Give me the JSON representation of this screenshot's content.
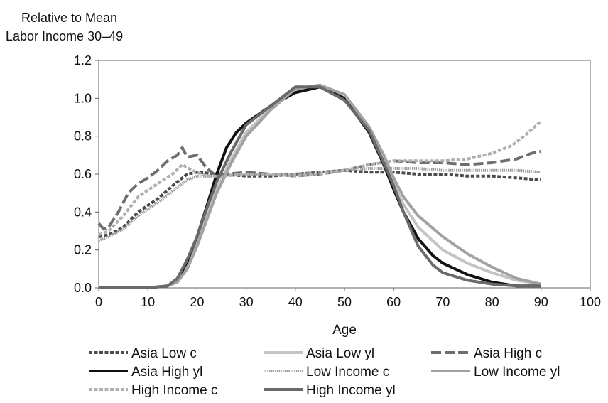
{
  "chart_data": {
    "type": "line",
    "ylabel_line1": "Relative to Mean",
    "ylabel_line2": "Labor Income 30–49",
    "xlabel": "Age",
    "xlim": [
      0,
      100
    ],
    "ylim": [
      0,
      1.2
    ],
    "xticks": [
      "0",
      "10",
      "20",
      "30",
      "40",
      "50",
      "60",
      "70",
      "80",
      "90",
      "100"
    ],
    "yticks": [
      "0.0",
      "0.2",
      "0.4",
      "0.6",
      "0.8",
      "1.0",
      "1.2"
    ],
    "legend_position": "bottom",
    "series": [
      {
        "name": "Asia Low c",
        "color": "#4a4a4a",
        "dash": "short",
        "x": [
          0,
          2,
          5,
          8,
          12,
          16,
          18,
          20,
          25,
          30,
          35,
          40,
          45,
          50,
          55,
          60,
          65,
          70,
          75,
          80,
          85,
          90
        ],
        "y": [
          0.27,
          0.28,
          0.32,
          0.4,
          0.47,
          0.56,
          0.6,
          0.61,
          0.6,
          0.59,
          0.59,
          0.6,
          0.61,
          0.62,
          0.61,
          0.61,
          0.6,
          0.6,
          0.59,
          0.59,
          0.58,
          0.57
        ]
      },
      {
        "name": "Asia Low yl",
        "color": "#c4c4c4",
        "dash": "solid",
        "x": [
          0,
          10,
          14,
          16,
          18,
          20,
          22,
          24,
          27,
          30,
          35,
          40,
          45,
          50,
          55,
          58,
          60,
          62,
          65,
          70,
          75,
          80,
          85,
          90
        ],
        "y": [
          0,
          0,
          0.01,
          0.04,
          0.12,
          0.24,
          0.38,
          0.52,
          0.68,
          0.82,
          0.95,
          1.04,
          1.06,
          1.0,
          0.83,
          0.66,
          0.55,
          0.44,
          0.32,
          0.2,
          0.13,
          0.08,
          0.04,
          0.02
        ]
      },
      {
        "name": "Asia High c",
        "color": "#6e6e6e",
        "dash": "long",
        "x": [
          0,
          1,
          2,
          4,
          6,
          8,
          10,
          12,
          14,
          16,
          17,
          18,
          20,
          22,
          24,
          26,
          30,
          35,
          40,
          45,
          50,
          55,
          60,
          65,
          70,
          75,
          80,
          85,
          88,
          90
        ],
        "y": [
          0.34,
          0.31,
          0.32,
          0.4,
          0.5,
          0.55,
          0.58,
          0.62,
          0.67,
          0.7,
          0.74,
          0.69,
          0.7,
          0.63,
          0.59,
          0.6,
          0.61,
          0.6,
          0.59,
          0.6,
          0.62,
          0.65,
          0.67,
          0.66,
          0.66,
          0.65,
          0.66,
          0.68,
          0.71,
          0.72
        ]
      },
      {
        "name": "Asia High yl",
        "color": "#111111",
        "dash": "solid",
        "x": [
          0,
          10,
          14,
          16,
          18,
          20,
          22,
          24,
          26,
          28,
          30,
          35,
          40,
          45,
          50,
          55,
          58,
          60,
          62,
          65,
          68,
          70,
          75,
          80,
          85,
          90
        ],
        "y": [
          0,
          0,
          0.01,
          0.04,
          0.14,
          0.27,
          0.43,
          0.6,
          0.74,
          0.82,
          0.87,
          0.96,
          1.03,
          1.06,
          1.0,
          0.82,
          0.65,
          0.52,
          0.4,
          0.26,
          0.17,
          0.13,
          0.07,
          0.03,
          0.01,
          0.01
        ]
      },
      {
        "name": "Low Income c",
        "color": "#9a9a9a",
        "dash": "dotted",
        "x": [
          0,
          2,
          5,
          8,
          12,
          16,
          18,
          20,
          25,
          30,
          35,
          40,
          45,
          50,
          55,
          60,
          65,
          70,
          75,
          80,
          85,
          90
        ],
        "y": [
          0.25,
          0.27,
          0.31,
          0.38,
          0.45,
          0.53,
          0.57,
          0.59,
          0.59,
          0.6,
          0.6,
          0.6,
          0.61,
          0.62,
          0.63,
          0.63,
          0.63,
          0.62,
          0.62,
          0.62,
          0.62,
          0.61
        ]
      },
      {
        "name": "Low Income yl",
        "color": "#a2a2a2",
        "dash": "solid",
        "x": [
          0,
          10,
          14,
          16,
          18,
          20,
          22,
          24,
          27,
          30,
          35,
          40,
          45,
          50,
          55,
          58,
          60,
          62,
          65,
          70,
          75,
          80,
          85,
          90
        ],
        "y": [
          0,
          0,
          0.01,
          0.03,
          0.1,
          0.22,
          0.36,
          0.5,
          0.66,
          0.8,
          0.94,
          1.05,
          1.07,
          1.02,
          0.85,
          0.7,
          0.58,
          0.48,
          0.38,
          0.27,
          0.18,
          0.11,
          0.05,
          0.02
        ]
      },
      {
        "name": "High Income c",
        "color": "#b0b0b0",
        "dash": "short",
        "x": [
          0,
          2,
          5,
          8,
          12,
          15,
          17,
          19,
          22,
          25,
          30,
          35,
          40,
          45,
          50,
          55,
          60,
          65,
          70,
          75,
          80,
          84,
          87,
          90
        ],
        "y": [
          0.28,
          0.3,
          0.38,
          0.48,
          0.55,
          0.6,
          0.65,
          0.62,
          0.59,
          0.59,
          0.6,
          0.6,
          0.59,
          0.6,
          0.62,
          0.65,
          0.67,
          0.67,
          0.67,
          0.68,
          0.71,
          0.75,
          0.81,
          0.88
        ]
      },
      {
        "name": "High Income yl",
        "color": "#6a6a6a",
        "dash": "solid",
        "x": [
          0,
          10,
          14,
          16,
          18,
          20,
          22,
          24,
          27,
          30,
          35,
          40,
          45,
          50,
          55,
          58,
          60,
          62,
          65,
          68,
          70,
          75,
          80,
          85,
          90
        ],
        "y": [
          0,
          0,
          0.01,
          0.05,
          0.15,
          0.27,
          0.42,
          0.56,
          0.72,
          0.86,
          0.96,
          1.06,
          1.06,
          0.99,
          0.83,
          0.66,
          0.54,
          0.4,
          0.22,
          0.12,
          0.08,
          0.04,
          0.02,
          0.01,
          0.01
        ]
      }
    ]
  }
}
